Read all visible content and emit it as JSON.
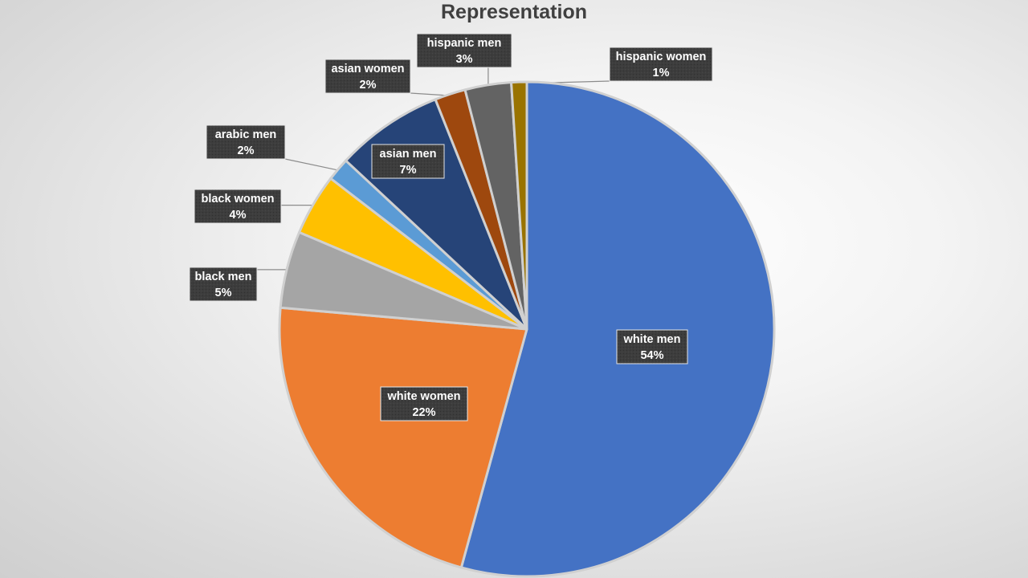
{
  "chart_data": {
    "type": "pie",
    "title": "Representation",
    "slices": [
      {
        "label": "white men",
        "value": 54,
        "percent_label": "54%",
        "color": "#4472C4"
      },
      {
        "label": "white women",
        "value": 22,
        "percent_label": "22%",
        "color": "#ED7D31"
      },
      {
        "label": "black men",
        "value": 5,
        "percent_label": "5%",
        "color": "#A5A5A5"
      },
      {
        "label": "black women",
        "value": 4,
        "percent_label": "4%",
        "color": "#FFC000"
      },
      {
        "label": "arabic men",
        "value": 1.5,
        "percent_label": "2%",
        "color": "#5B9BD5"
      },
      {
        "label": "asian men",
        "value": 7,
        "percent_label": "7%",
        "color": "#264478"
      },
      {
        "label": "asian women",
        "value": 2,
        "percent_label": "2%",
        "color": "#9E480E"
      },
      {
        "label": "hispanic men",
        "value": 3,
        "percent_label": "3%",
        "color": "#636363"
      },
      {
        "label": "hispanic women",
        "value": 1,
        "percent_label": "1%",
        "color": "#997300"
      }
    ],
    "start": "clockwise from 12 o'clock",
    "legend": "none",
    "data_labels": "category name and percentage in dark callout boxes"
  }
}
